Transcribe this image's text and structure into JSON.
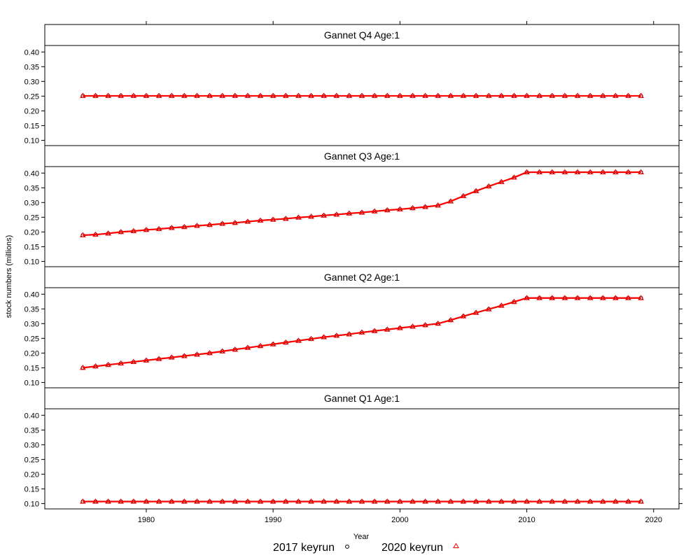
{
  "chart_data": {
    "type": "line",
    "xlabel": "Year",
    "ylabel": "stock numbers (millions)",
    "xlim": [
      1972,
      2022
    ],
    "ylim": [
      0.082,
      0.422
    ],
    "x_ticks": [
      1980,
      1990,
      2000,
      2010,
      2020
    ],
    "y_ticks": [
      0.1,
      0.15,
      0.2,
      0.25,
      0.3,
      0.35,
      0.4
    ],
    "y_tick_labels": [
      "0.10",
      "0.15",
      "0.20",
      "0.25",
      "0.30",
      "0.35",
      "0.40"
    ],
    "grid": false,
    "legend": {
      "position": "bottom",
      "entries": [
        {
          "label": "2017 keyrun",
          "marker": "circle",
          "color": "#000000"
        },
        {
          "label": "2020 keyrun",
          "marker": "triangle",
          "color": "#ff0000"
        }
      ]
    },
    "colors": {
      "line_2017": "#000000",
      "line_2020": "#ff0000"
    },
    "x": [
      1975,
      1976,
      1977,
      1978,
      1979,
      1980,
      1981,
      1982,
      1983,
      1984,
      1985,
      1986,
      1987,
      1988,
      1989,
      1990,
      1991,
      1992,
      1993,
      1994,
      1995,
      1996,
      1997,
      1998,
      1999,
      2000,
      2001,
      2002,
      2003,
      2004,
      2005,
      2006,
      2007,
      2008,
      2009,
      2010,
      2011,
      2012,
      2013,
      2014,
      2015,
      2016,
      2017,
      2018,
      2019
    ],
    "panels": [
      {
        "title": "Gannet Q4 Age:1",
        "series": [
          {
            "name": "2017 keyrun",
            "values": [
              0.251,
              0.251,
              0.251,
              0.251,
              0.251,
              0.251,
              0.251,
              0.251,
              0.251,
              0.251,
              0.251,
              0.251,
              0.251,
              0.251,
              0.251,
              0.251,
              0.251,
              0.251,
              0.251,
              0.251,
              0.251,
              0.251,
              0.251,
              0.251,
              0.251,
              0.251,
              0.251,
              0.251,
              0.251,
              0.251,
              0.251,
              0.251,
              0.251,
              0.251,
              0.251,
              0.251,
              0.251,
              0.251,
              0.251,
              0.251,
              0.251,
              0.251,
              0.251,
              0.251,
              0.251
            ]
          },
          {
            "name": "2020 keyrun",
            "values": [
              0.251,
              0.251,
              0.251,
              0.251,
              0.251,
              0.251,
              0.251,
              0.251,
              0.251,
              0.251,
              0.251,
              0.251,
              0.251,
              0.251,
              0.251,
              0.251,
              0.251,
              0.251,
              0.251,
              0.251,
              0.251,
              0.251,
              0.251,
              0.251,
              0.251,
              0.251,
              0.251,
              0.251,
              0.251,
              0.251,
              0.251,
              0.251,
              0.251,
              0.251,
              0.251,
              0.251,
              0.251,
              0.251,
              0.251,
              0.251,
              0.251,
              0.251,
              0.251,
              0.251,
              0.251
            ]
          }
        ]
      },
      {
        "title": "Gannet Q3 Age:1",
        "series": [
          {
            "name": "2017 keyrun",
            "values": [
              0.189,
              0.191,
              0.195,
              0.2,
              0.203,
              0.207,
              0.21,
              0.214,
              0.217,
              0.221,
              0.224,
              0.228,
              0.231,
              0.235,
              0.239,
              0.242,
              0.245,
              0.249,
              0.252,
              0.256,
              0.259,
              0.263,
              0.266,
              0.27,
              0.274,
              0.277,
              0.281,
              0.285,
              0.29,
              0.304,
              0.322,
              0.339,
              0.355,
              0.37,
              0.385,
              0.403,
              0.403,
              0.403,
              0.403,
              0.403,
              0.403,
              0.403,
              0.403,
              0.403,
              0.403
            ]
          },
          {
            "name": "2020 keyrun",
            "values": [
              0.189,
              0.191,
              0.195,
              0.2,
              0.203,
              0.207,
              0.21,
              0.214,
              0.217,
              0.221,
              0.224,
              0.228,
              0.231,
              0.235,
              0.239,
              0.242,
              0.245,
              0.249,
              0.252,
              0.256,
              0.259,
              0.263,
              0.266,
              0.27,
              0.274,
              0.277,
              0.281,
              0.285,
              0.29,
              0.304,
              0.322,
              0.339,
              0.355,
              0.37,
              0.385,
              0.403,
              0.403,
              0.403,
              0.403,
              0.403,
              0.403,
              0.403,
              0.403,
              0.403,
              0.403
            ]
          }
        ]
      },
      {
        "title": "Gannet Q2 Age:1",
        "series": [
          {
            "name": "2017 keyrun",
            "values": [
              0.15,
              0.155,
              0.16,
              0.165,
              0.17,
              0.175,
              0.18,
              0.185,
              0.19,
              0.195,
              0.2,
              0.206,
              0.212,
              0.218,
              0.224,
              0.23,
              0.236,
              0.242,
              0.248,
              0.254,
              0.259,
              0.264,
              0.27,
              0.275,
              0.28,
              0.285,
              0.29,
              0.295,
              0.3,
              0.312,
              0.325,
              0.337,
              0.349,
              0.361,
              0.374,
              0.387,
              0.387,
              0.387,
              0.387,
              0.387,
              0.387,
              0.387,
              0.387,
              0.387,
              0.387
            ]
          },
          {
            "name": "2020 keyrun",
            "values": [
              0.15,
              0.155,
              0.16,
              0.165,
              0.17,
              0.175,
              0.18,
              0.185,
              0.19,
              0.195,
              0.2,
              0.206,
              0.212,
              0.218,
              0.224,
              0.23,
              0.236,
              0.242,
              0.248,
              0.254,
              0.259,
              0.264,
              0.27,
              0.275,
              0.28,
              0.285,
              0.29,
              0.295,
              0.3,
              0.312,
              0.325,
              0.337,
              0.349,
              0.361,
              0.374,
              0.387,
              0.387,
              0.387,
              0.387,
              0.387,
              0.387,
              0.387,
              0.387,
              0.387,
              0.387
            ]
          }
        ]
      },
      {
        "title": "Gannet Q1 Age:1",
        "series": [
          {
            "name": "2017 keyrun",
            "values": [
              0.107,
              0.107,
              0.107,
              0.107,
              0.107,
              0.107,
              0.107,
              0.107,
              0.107,
              0.107,
              0.107,
              0.107,
              0.107,
              0.107,
              0.107,
              0.107,
              0.107,
              0.107,
              0.107,
              0.107,
              0.107,
              0.107,
              0.107,
              0.107,
              0.107,
              0.107,
              0.107,
              0.107,
              0.107,
              0.107,
              0.107,
              0.107,
              0.107,
              0.107,
              0.107,
              0.107,
              0.107,
              0.107,
              0.107,
              0.107,
              0.107,
              0.107,
              0.107,
              0.107,
              0.107
            ]
          },
          {
            "name": "2020 keyrun",
            "values": [
              0.107,
              0.107,
              0.107,
              0.107,
              0.107,
              0.107,
              0.107,
              0.107,
              0.107,
              0.107,
              0.107,
              0.107,
              0.107,
              0.107,
              0.107,
              0.107,
              0.107,
              0.107,
              0.107,
              0.107,
              0.107,
              0.107,
              0.107,
              0.107,
              0.107,
              0.107,
              0.107,
              0.107,
              0.107,
              0.107,
              0.107,
              0.107,
              0.107,
              0.107,
              0.107,
              0.107,
              0.107,
              0.107,
              0.107,
              0.107,
              0.107,
              0.107,
              0.107,
              0.107,
              0.107
            ]
          }
        ]
      }
    ]
  }
}
